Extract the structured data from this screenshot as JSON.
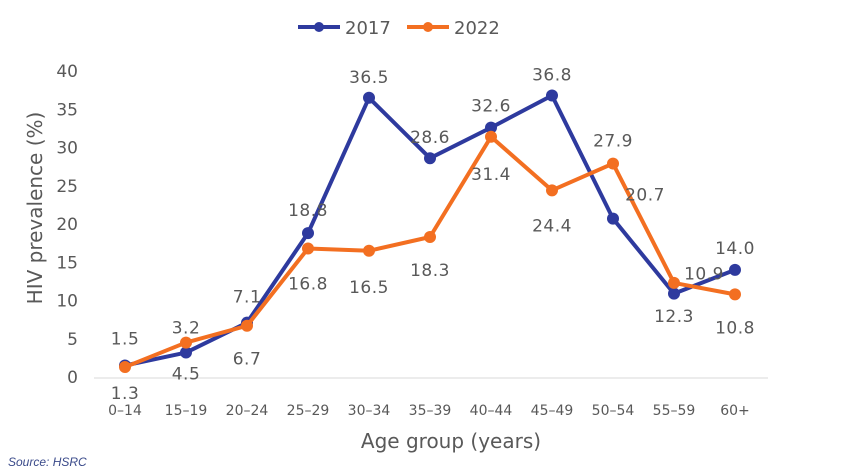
{
  "chart_data": {
    "type": "line",
    "categories": [
      "0–14",
      "15–19",
      "20–24",
      "25–29",
      "30–34",
      "35–39",
      "40–44",
      "45–49",
      "50–54",
      "55–59",
      "60+"
    ],
    "series": [
      {
        "name": "2017",
        "color": "#2e3a9e",
        "values": [
          1.5,
          3.2,
          7.1,
          18.8,
          36.5,
          28.6,
          32.6,
          36.8,
          20.7,
          10.9,
          14.0
        ],
        "labels": [
          "1.5",
          "3.2",
          "7.1",
          "18.8",
          "36.5",
          "28.6",
          "32.6",
          "36.8",
          "20.7",
          "10.9",
          "14.0"
        ]
      },
      {
        "name": "2022",
        "color": "#f36f21",
        "values": [
          1.3,
          4.5,
          6.7,
          16.8,
          16.5,
          18.3,
          31.4,
          24.4,
          27.9,
          12.3,
          10.8
        ],
        "labels": [
          "1.3",
          "4.5",
          "6.7",
          "16.8",
          "16.5",
          "18.3",
          "31.4",
          "24.4",
          "27.9",
          "12.3",
          "10.8"
        ]
      }
    ],
    "ylim": [
      0,
      40
    ],
    "yticks": [
      "0",
      "5",
      "10",
      "15",
      "20",
      "25",
      "30",
      "35",
      "40"
    ],
    "xlabel": "Age group (years)",
    "ylabel": "HIV prevalence (%)",
    "legend": "top-center",
    "grid": false
  },
  "source_note": "Source: HSRC"
}
